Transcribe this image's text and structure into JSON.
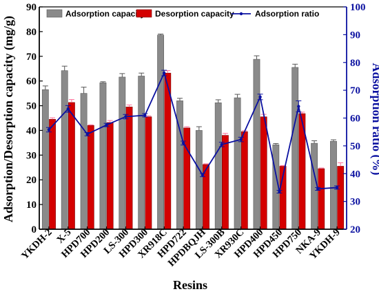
{
  "chart_data": {
    "type": "bar",
    "categories": [
      "YKDH-2",
      "X-5",
      "HPD700",
      "HPD200",
      "LS-300",
      "HPD300",
      "XR918C",
      "HPD722",
      "HPDBQJH",
      "LS-300B",
      "XR930C",
      "HPD400",
      "HPD450",
      "HPD750",
      "NKA-9",
      "YKDH-9"
    ],
    "series": [
      {
        "name": "Adsorption capacity",
        "axis": "left",
        "kind": "bar",
        "values": [
          56.5,
          64.2,
          55.0,
          59.3,
          61.6,
          62.0,
          78.6,
          52.0,
          40.0,
          51.2,
          53.2,
          68.8,
          34.2,
          65.5,
          34.8,
          35.6
        ],
        "errors": [
          1.5,
          1.8,
          2.5,
          0.4,
          1.4,
          1.2,
          0.4,
          1.0,
          1.5,
          1.2,
          1.4,
          1.4,
          0.5,
          1.3,
          1.0,
          0.6
        ]
      },
      {
        "name": "Desorption capacity",
        "axis": "left",
        "kind": "bar",
        "values": [
          44.5,
          51.3,
          42.0,
          43.2,
          49.5,
          45.5,
          63.2,
          41.0,
          26.2,
          38.0,
          39.5,
          45.5,
          25.5,
          46.8,
          24.5,
          25.5
        ],
        "errors": [
          0.6,
          1.2,
          0.3,
          0.8,
          0.8,
          0.4,
          1.0,
          0.5,
          0.3,
          0.8,
          0.4,
          1.0,
          0.3,
          0.6,
          0.3,
          1.4
        ]
      },
      {
        "name": "Adsorption ratio",
        "axis": "right",
        "kind": "line",
        "values": [
          55.8,
          63.3,
          54.2,
          57.5,
          60.5,
          61.0,
          76.2,
          51.0,
          39.5,
          50.5,
          52.3,
          67.6,
          33.5,
          64.2,
          34.5,
          35.0
        ],
        "errors": [
          0.8,
          1.2,
          0.6,
          0.6,
          0.8,
          0.6,
          1.0,
          0.7,
          0.6,
          0.8,
          0.8,
          1.0,
          0.5,
          2.0,
          0.5,
          0.6
        ]
      }
    ],
    "xlabel": "Resins",
    "ylabel": "Adsorption/Desorption capacity (mg/g)",
    "y2label": "Adsorption ratio (%)",
    "ylim": [
      0,
      90
    ],
    "y2lim": [
      20,
      100
    ],
    "yticks": [
      0,
      10,
      20,
      30,
      40,
      50,
      60,
      70,
      80,
      90
    ],
    "y2ticks": [
      20,
      30,
      40,
      50,
      60,
      70,
      80,
      90,
      100
    ],
    "grid": false,
    "legend_position": "top",
    "colors": {
      "adsorption_bar": "#8a8a8a",
      "desorption_bar": "#d40000",
      "ratio_line": "#0a10a0",
      "left_axis": "#000000",
      "right_axis": "#0a10a0"
    }
  }
}
